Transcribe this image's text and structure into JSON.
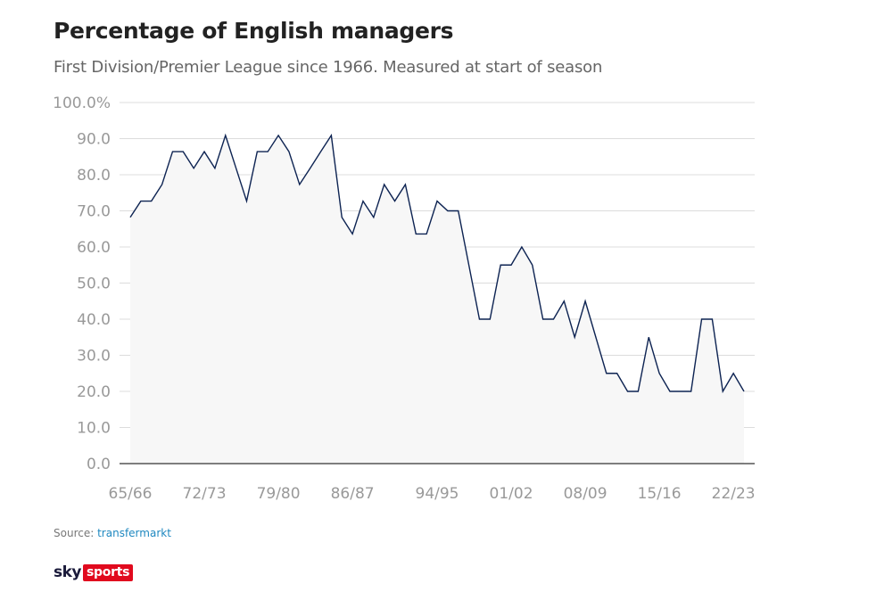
{
  "title": "Percentage of English managers",
  "subtitle": "First Division/Premier League since 1966. Measured at start of season",
  "source": {
    "label": "Source:",
    "link": "transfermarkt"
  },
  "logo": {
    "sky": "sky",
    "sports": "sports"
  },
  "colors": {
    "line": "#0d2352",
    "fill": "#f7f7f7",
    "grid": "#dcdcdc",
    "axis": "#555555",
    "tick": "#999999"
  },
  "chart_data": {
    "type": "area",
    "title": "Percentage of English managers",
    "subtitle": "First Division/Premier League since 1966. Measured at start of season",
    "xlabel": "",
    "ylabel": "",
    "ylim": [
      0,
      100
    ],
    "grid": true,
    "legend": "none",
    "y_ticks": [
      "0.0",
      "10.0",
      "20.0",
      "30.0",
      "40.0",
      "50.0",
      "60.0",
      "70.0",
      "80.0",
      "90.0",
      "100.0%"
    ],
    "x_tick_labels": [
      {
        "label": "65/66",
        "index": 0
      },
      {
        "label": "72/73",
        "index": 7
      },
      {
        "label": "79/80",
        "index": 14
      },
      {
        "label": "86/87",
        "index": 21
      },
      {
        "label": "94/95",
        "index": 29
      },
      {
        "label": "01/02",
        "index": 36
      },
      {
        "label": "08/09",
        "index": 43
      },
      {
        "label": "15/16",
        "index": 50
      },
      {
        "label": "22/23",
        "index": 57
      }
    ],
    "series": [
      {
        "values": [
          68.2,
          72.7,
          72.7,
          77.3,
          86.4,
          86.4,
          81.8,
          86.4,
          81.8,
          90.9,
          81.8,
          72.7,
          86.4,
          86.4,
          90.9,
          86.4,
          77.3,
          81.8,
          86.4,
          90.9,
          68.2,
          63.6,
          72.7,
          68.2,
          77.3,
          72.7,
          77.3,
          63.6,
          63.6,
          72.7,
          70.0,
          70.0,
          55.0,
          40.0,
          40.0,
          55.0,
          55.0,
          60.0,
          55.0,
          40.0,
          40.0,
          45.0,
          35.0,
          45.0,
          35.0,
          25.0,
          25.0,
          20.0,
          20.0,
          35.0,
          25.0,
          20.0,
          20.0,
          20.0,
          40.0,
          40.0,
          20.0,
          25.0,
          20.0
        ]
      }
    ]
  }
}
